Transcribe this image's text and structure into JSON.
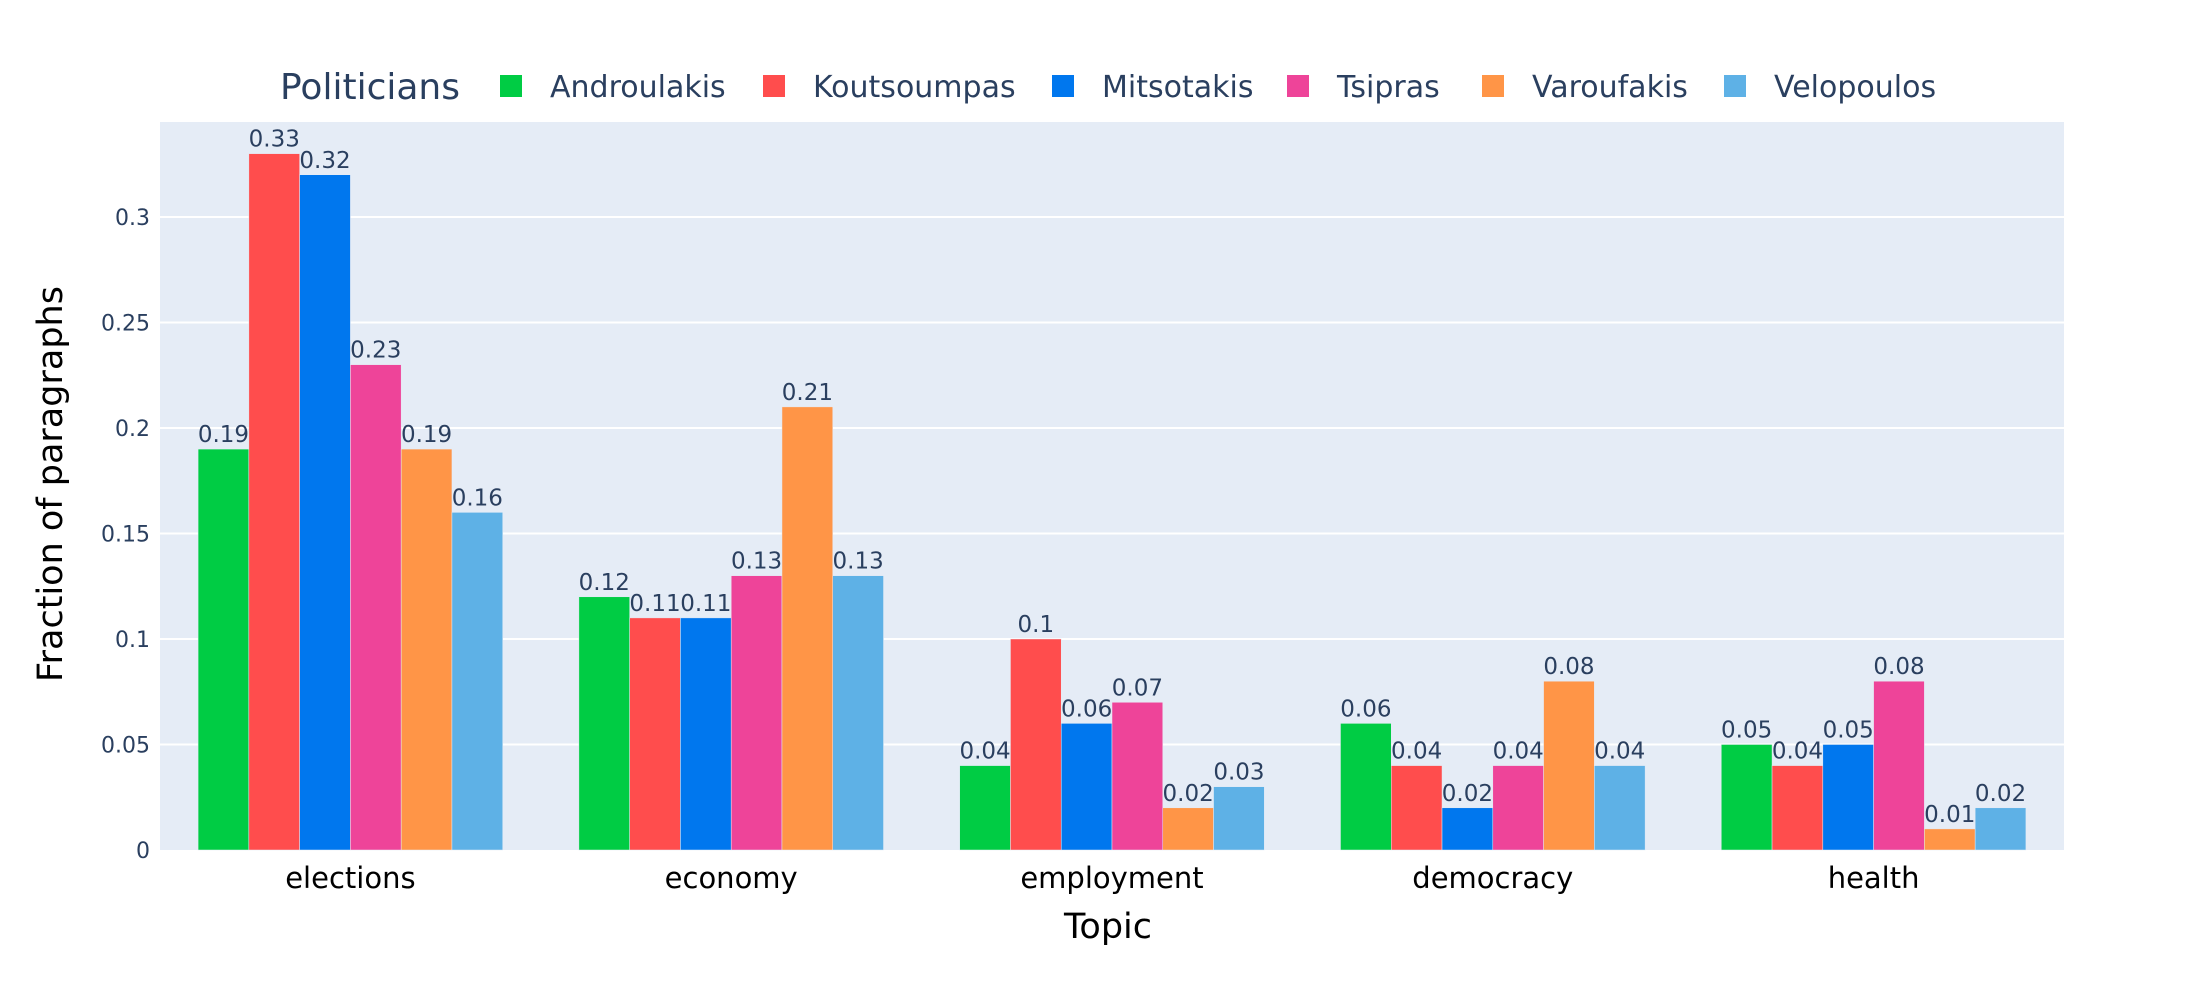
{
  "chart_data": {
    "type": "bar",
    "xlabel": "Topic",
    "ylabel": "Fraction of paragraphs",
    "ylim": [
      0,
      0.345
    ],
    "yticks": [
      0,
      0.05,
      0.1,
      0.15,
      0.2,
      0.25,
      0.3
    ],
    "ytick_labels": [
      "0",
      "0.05",
      "0.1",
      "0.15",
      "0.2",
      "0.25",
      "0.3"
    ],
    "grid": true,
    "plot_background": "#e5ecf6",
    "legend": {
      "title": "Politicians",
      "placement": "top",
      "orientation": "horizontal"
    },
    "categories": [
      "elections",
      "economy",
      "employment",
      "democracy",
      "health"
    ],
    "series": [
      {
        "name": "Androulakis",
        "color": "#00cc44",
        "values": [
          0.19,
          0.12,
          0.04,
          0.06,
          0.05
        ],
        "labels": [
          "0.19",
          "0.12",
          "0.04",
          "0.06",
          "0.05"
        ]
      },
      {
        "name": "Koutsoumpas",
        "color": "#ff4d4d",
        "values": [
          0.33,
          0.11,
          0.1,
          0.04,
          0.04
        ],
        "labels": [
          "0.33",
          "0.11",
          "0.1",
          "0.04",
          "0.04"
        ]
      },
      {
        "name": "Mitsotakis",
        "color": "#0077ee",
        "values": [
          0.32,
          0.11,
          0.06,
          0.02,
          0.05
        ],
        "labels": [
          "0.32",
          "0.11",
          "0.06",
          "0.02",
          "0.05"
        ]
      },
      {
        "name": "Tsipras",
        "color": "#ee4499",
        "values": [
          0.23,
          0.13,
          0.07,
          0.04,
          0.08
        ],
        "labels": [
          "0.23",
          "0.13",
          "0.07",
          "0.04",
          "0.08"
        ]
      },
      {
        "name": "Varoufakis",
        "color": "#ff9547",
        "values": [
          0.19,
          0.21,
          0.02,
          0.08,
          0.01
        ],
        "labels": [
          "0.19",
          "0.21",
          "0.02",
          "0.08",
          "0.01"
        ]
      },
      {
        "name": "Velopoulos",
        "color": "#5eb1e6",
        "values": [
          0.16,
          0.13,
          0.03,
          0.04,
          0.02
        ],
        "labels": [
          "0.16",
          "0.13",
          "0.03",
          "0.04",
          "0.02"
        ]
      }
    ]
  }
}
